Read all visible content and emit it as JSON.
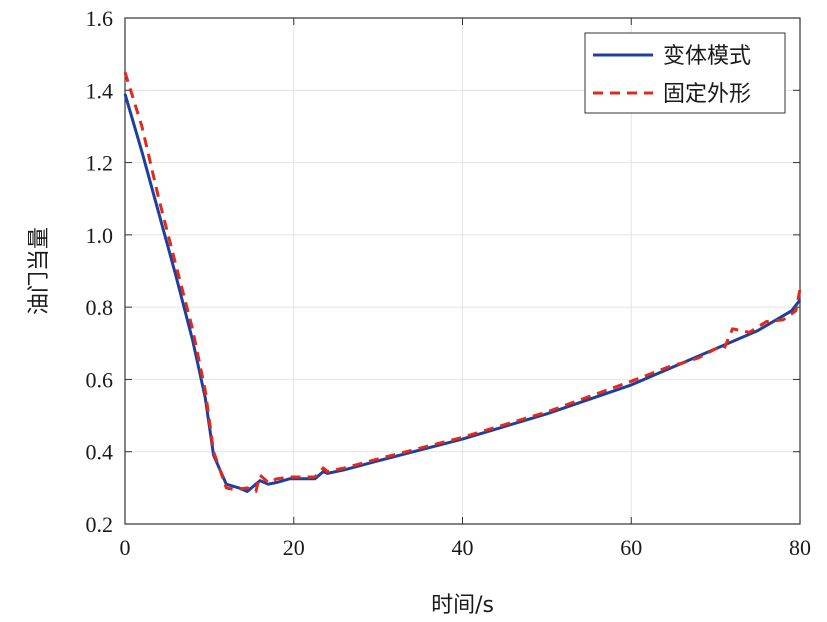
{
  "chart_data": {
    "type": "line",
    "xlabel": "时间/s",
    "ylabel": "油门当量",
    "xlim": [
      0,
      80
    ],
    "ylim": [
      0.2,
      1.6
    ],
    "xticks": [
      "0",
      "20",
      "40",
      "60",
      "80"
    ],
    "yticks": [
      "0.2",
      "0.4",
      "0.6",
      "0.8",
      "1.0",
      "1.2",
      "1.4",
      "1.6"
    ],
    "grid": true,
    "legend_position": "top-right",
    "series": [
      {
        "name": "变体模式",
        "color": "#1f3f9f",
        "style": "solid",
        "x": [
          0,
          2,
          4,
          6,
          8,
          9.5,
          10.5,
          12,
          13.5,
          14.5,
          16,
          17,
          18,
          19.5,
          21,
          22.5,
          23.5,
          24,
          26,
          30,
          40,
          50,
          60,
          70,
          75,
          79,
          80
        ],
        "y": [
          1.39,
          1.23,
          1.06,
          0.89,
          0.71,
          0.55,
          0.39,
          0.31,
          0.3,
          0.29,
          0.32,
          0.31,
          0.315,
          0.325,
          0.325,
          0.325,
          0.345,
          0.34,
          0.35,
          0.375,
          0.435,
          0.505,
          0.585,
          0.685,
          0.735,
          0.79,
          0.82
        ]
      },
      {
        "name": "固定外形",
        "color": "#e02a1c",
        "style": "dashed",
        "x": [
          0,
          2,
          4,
          6,
          8,
          9.5,
          10.5,
          12,
          13,
          14.5,
          15.5,
          16,
          17,
          18,
          19.5,
          21,
          22.5,
          23.5,
          24,
          26,
          30,
          40,
          50,
          60,
          65,
          66,
          68,
          70,
          71,
          72,
          74,
          76,
          78,
          79.5,
          80
        ],
        "y": [
          1.45,
          1.3,
          1.1,
          0.92,
          0.74,
          0.57,
          0.4,
          0.3,
          0.295,
          0.3,
          0.29,
          0.335,
          0.315,
          0.325,
          0.33,
          0.33,
          0.33,
          0.355,
          0.345,
          0.355,
          0.38,
          0.44,
          0.51,
          0.595,
          0.64,
          0.645,
          0.66,
          0.685,
          0.685,
          0.74,
          0.73,
          0.76,
          0.765,
          0.79,
          0.85
        ]
      }
    ]
  }
}
